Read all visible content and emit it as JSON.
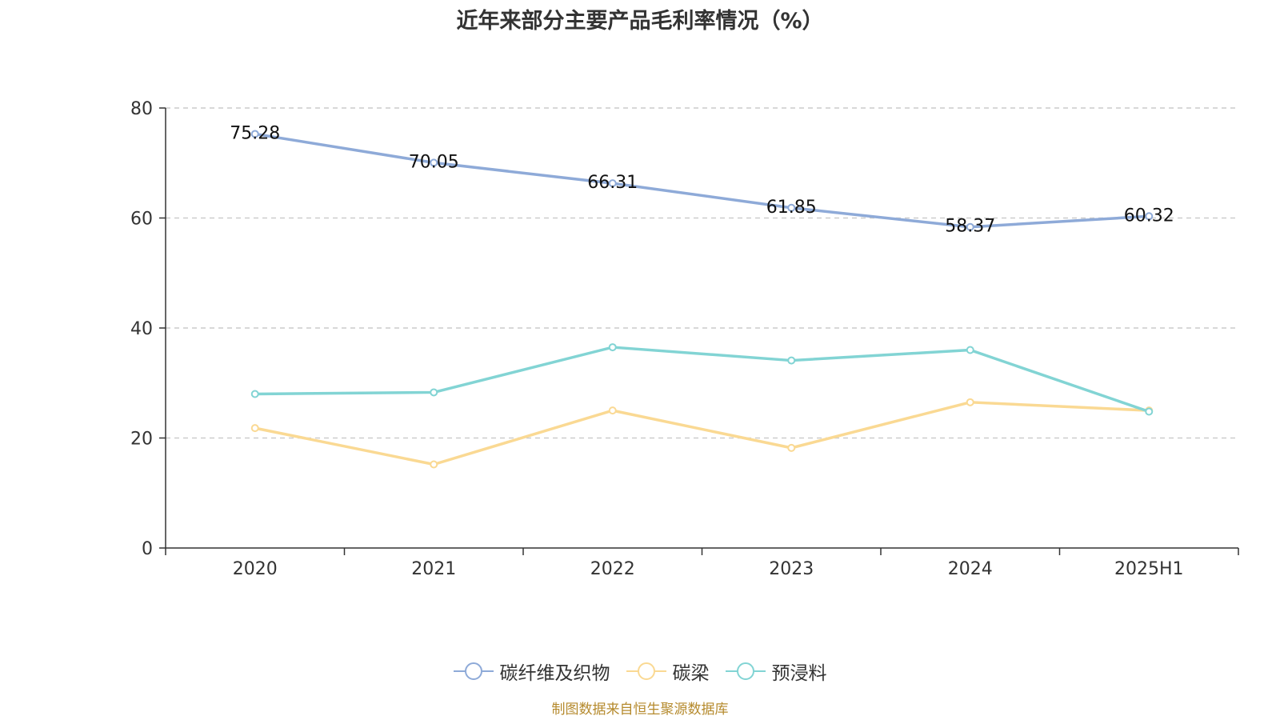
{
  "title": "近年来部分主要产品毛利率情况（%）",
  "source_note": "制图数据来自恒生聚源数据库",
  "colors": {
    "axis": "#333333",
    "grid": "#cccccc",
    "series": [
      "#8eaad8",
      "#fad993",
      "#82d4d4"
    ]
  },
  "chart_data": {
    "type": "line",
    "title": "近年来部分主要产品毛利率情况（%）",
    "categories": [
      "2020",
      "2021",
      "2022",
      "2023",
      "2024",
      "2025H1"
    ],
    "ylim": [
      0,
      80
    ],
    "yticks": [
      "0",
      "20",
      "40",
      "60",
      "80"
    ],
    "grid": true,
    "legend_position": "bottom-center",
    "series": [
      {
        "name": "碳纤维及织物",
        "values": [
          75.28,
          70.05,
          66.31,
          61.85,
          58.37,
          60.32
        ],
        "labels": [
          "75.28",
          "70.05",
          "66.31",
          "61.85",
          "58.37",
          "60.32"
        ]
      },
      {
        "name": "碳梁",
        "values": [
          21.8,
          15.2,
          25.0,
          18.2,
          26.5,
          25.0
        ]
      },
      {
        "name": "预浸料",
        "values": [
          28.0,
          28.3,
          36.5,
          34.1,
          36.0,
          24.8
        ]
      }
    ]
  }
}
